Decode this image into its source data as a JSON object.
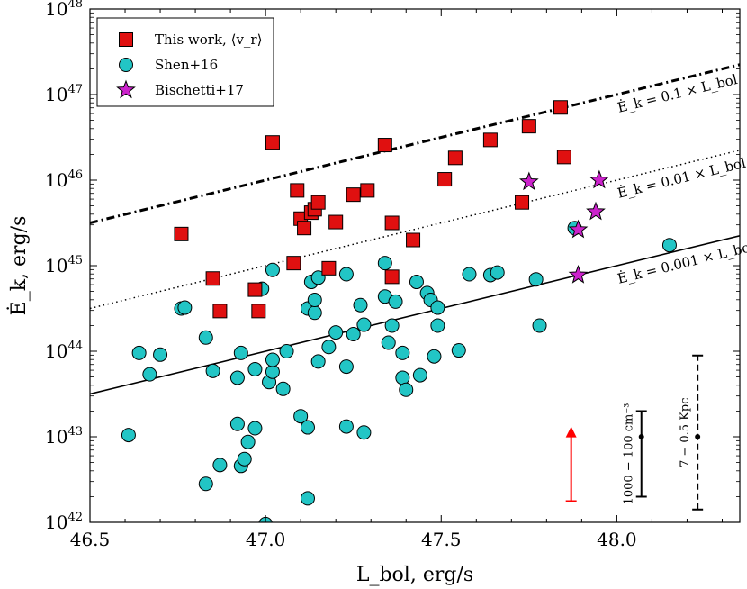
{
  "chart_data": {
    "type": "scatter",
    "xlabel": "L_bol, erg/s",
    "ylabel": "Ė_k, erg/s",
    "xlim": [
      46.5,
      48.35
    ],
    "ylim_log10": [
      42,
      48
    ],
    "x_ticks": [
      "46.5",
      "47.0",
      "47.5",
      "48.0"
    ],
    "x_tick_values": [
      46.5,
      47.0,
      47.5,
      48.0
    ],
    "y_ticks": [
      {
        "base": "10",
        "exp": "42",
        "value": 42
      },
      {
        "base": "10",
        "exp": "43",
        "value": 43
      },
      {
        "base": "10",
        "exp": "44",
        "value": 44
      },
      {
        "base": "10",
        "exp": "45",
        "value": 45
      },
      {
        "base": "10",
        "exp": "46",
        "value": 46
      },
      {
        "base": "10",
        "exp": "47",
        "value": 47
      },
      {
        "base": "10",
        "exp": "48",
        "value": 48
      }
    ],
    "legend": [
      {
        "label": "This work, ⟨v_r⟩",
        "marker": "square",
        "color": "#e01010"
      },
      {
        "label": "Shen+16",
        "marker": "circle",
        "color": "#22c5c5"
      },
      {
        "label": "Bischetti+17",
        "marker": "star",
        "color": "#cc22cc"
      }
    ],
    "lines": [
      {
        "name": "Ė_k = 0.1 × L_bol",
        "fraction": 0.1,
        "style": "dashdot"
      },
      {
        "name": "Ė_k = 0.01 × L_bol",
        "fraction": 0.01,
        "style": "dotted"
      },
      {
        "name": "Ė_k = 0.001 × L_bol",
        "fraction": 0.001,
        "style": "solid"
      }
    ],
    "series": [
      {
        "name": "This work",
        "marker": "square",
        "color": "#e01010",
        "points": [
          [
            46.76,
            45.37
          ],
          [
            46.85,
            44.85
          ],
          [
            46.87,
            44.47
          ],
          [
            46.97,
            44.72
          ],
          [
            46.98,
            44.47
          ],
          [
            47.02,
            46.44
          ],
          [
            47.08,
            45.03
          ],
          [
            47.09,
            45.88
          ],
          [
            47.1,
            45.55
          ],
          [
            47.11,
            45.44
          ],
          [
            47.13,
            45.62
          ],
          [
            47.14,
            45.66
          ],
          [
            47.15,
            45.74
          ],
          [
            47.18,
            44.97
          ],
          [
            47.2,
            45.51
          ],
          [
            47.25,
            45.83
          ],
          [
            47.29,
            45.88
          ],
          [
            47.34,
            46.41
          ],
          [
            47.36,
            45.5
          ],
          [
            47.36,
            44.87
          ],
          [
            47.42,
            45.3
          ],
          [
            47.51,
            46.01
          ],
          [
            47.54,
            46.26
          ],
          [
            47.64,
            46.47
          ],
          [
            47.73,
            45.74
          ],
          [
            47.75,
            46.63
          ],
          [
            47.84,
            46.85
          ],
          [
            47.85,
            46.27
          ]
        ]
      },
      {
        "name": "Shen+16",
        "marker": "circle",
        "color": "#22c5c5",
        "points": [
          [
            46.61,
            43.02
          ],
          [
            46.64,
            43.98
          ],
          [
            46.67,
            43.73
          ],
          [
            46.7,
            43.96
          ],
          [
            46.76,
            44.5
          ],
          [
            46.77,
            44.51
          ],
          [
            46.83,
            44.16
          ],
          [
            46.83,
            42.45
          ],
          [
            46.85,
            43.77
          ],
          [
            46.87,
            42.67
          ],
          [
            46.92,
            43.69
          ],
          [
            46.92,
            43.15
          ],
          [
            46.93,
            43.98
          ],
          [
            46.93,
            42.66
          ],
          [
            46.94,
            42.74
          ],
          [
            46.95,
            42.94
          ],
          [
            46.97,
            43.1
          ],
          [
            46.97,
            43.79
          ],
          [
            46.99,
            44.73
          ],
          [
            47.0,
            41.98
          ],
          [
            47.01,
            43.64
          ],
          [
            47.02,
            44.95
          ],
          [
            47.02,
            43.76
          ],
          [
            47.02,
            43.9
          ],
          [
            47.05,
            43.56
          ],
          [
            47.06,
            44.0
          ],
          [
            47.1,
            43.24
          ],
          [
            47.12,
            44.5
          ],
          [
            47.12,
            43.11
          ],
          [
            47.12,
            42.28
          ],
          [
            47.13,
            44.81
          ],
          [
            47.14,
            44.45
          ],
          [
            47.14,
            44.6
          ],
          [
            47.15,
            44.86
          ],
          [
            47.15,
            43.88
          ],
          [
            47.18,
            44.05
          ],
          [
            47.2,
            44.22
          ],
          [
            47.23,
            44.9
          ],
          [
            47.23,
            43.82
          ],
          [
            47.23,
            43.12
          ],
          [
            47.25,
            44.2
          ],
          [
            47.27,
            44.54
          ],
          [
            47.28,
            44.31
          ],
          [
            47.28,
            43.05
          ],
          [
            47.34,
            45.03
          ],
          [
            47.34,
            44.64
          ],
          [
            47.35,
            44.1
          ],
          [
            47.36,
            44.3
          ],
          [
            47.37,
            44.58
          ],
          [
            47.39,
            43.98
          ],
          [
            47.39,
            43.69
          ],
          [
            47.4,
            43.55
          ],
          [
            47.43,
            44.81
          ],
          [
            47.44,
            43.72
          ],
          [
            47.46,
            44.68
          ],
          [
            47.47,
            44.6
          ],
          [
            47.48,
            43.94
          ],
          [
            47.49,
            44.51
          ],
          [
            47.49,
            44.3
          ],
          [
            47.55,
            44.01
          ],
          [
            47.58,
            44.9
          ],
          [
            47.64,
            44.89
          ],
          [
            47.66,
            44.92
          ],
          [
            47.77,
            44.84
          ],
          [
            47.78,
            44.3
          ],
          [
            47.88,
            45.44
          ],
          [
            48.15,
            45.24
          ]
        ]
      },
      {
        "name": "Bischetti+17",
        "marker": "star",
        "color": "#cc22cc",
        "points": [
          [
            47.75,
            45.98
          ],
          [
            47.89,
            45.42
          ],
          [
            47.89,
            44.89
          ],
          [
            47.94,
            45.63
          ],
          [
            47.95,
            46.0
          ]
        ]
      }
    ],
    "error_bars": [
      {
        "label": "1000 − 100 cm⁻³",
        "x": 48.07,
        "y_log10": 43.0,
        "low_log10": 42.3,
        "high_log10": 43.3,
        "style": "solid",
        "color": "#000000"
      },
      {
        "label": "7 − 0.5 Kpc",
        "x": 48.23,
        "y_log10": 43.0,
        "low_log10": 42.15,
        "high_log10": 43.95,
        "style": "dashed",
        "color": "#000000"
      }
    ],
    "arrow": {
      "x": 47.87,
      "from_log10": 42.25,
      "to_log10": 43.12,
      "color": "#ff0000"
    }
  }
}
